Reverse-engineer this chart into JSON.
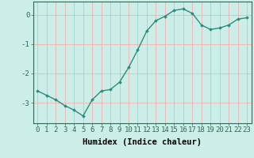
{
  "xlabel": "Humidex (Indice chaleur)",
  "x": [
    0,
    1,
    2,
    3,
    4,
    5,
    6,
    7,
    8,
    9,
    10,
    11,
    12,
    13,
    14,
    15,
    16,
    17,
    18,
    19,
    20,
    21,
    22,
    23
  ],
  "y": [
    -2.6,
    -2.75,
    -2.9,
    -3.1,
    -3.25,
    -3.45,
    -2.9,
    -2.6,
    -2.55,
    -2.3,
    -1.8,
    -1.2,
    -0.55,
    -0.2,
    -0.05,
    0.15,
    0.2,
    0.05,
    -0.35,
    -0.5,
    -0.45,
    -0.35,
    -0.15,
    -0.1
  ],
  "line_color": "#2e8b7a",
  "marker": "D",
  "marker_size": 1.8,
  "background_color": "#cceee8",
  "grid_color": "#f0b0b0",
  "ylim": [
    -3.7,
    0.45
  ],
  "yticks": [
    0,
    -1,
    -2,
    -3
  ],
  "tick_label_fontsize": 6.5,
  "xlabel_fontsize": 7.5,
  "line_width": 1.0,
  "spine_color": "#336655"
}
